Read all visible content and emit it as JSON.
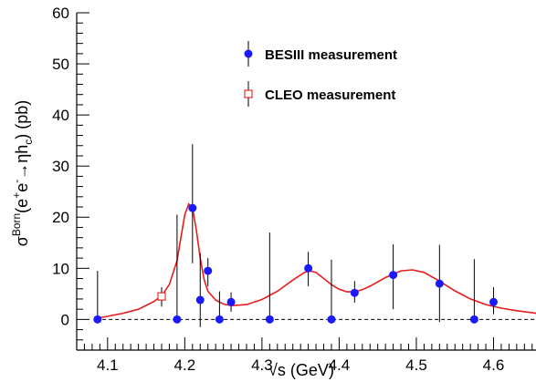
{
  "chart_data": {
    "type": "scatter",
    "xlabel": "√s (GeV)",
    "ylabel": {
      "prefix": "σ",
      "sup1": "Born",
      "mid1": "(e",
      "sup2": "+",
      "mid2": "e",
      "sup3": "-",
      "mid3": "→ηh",
      "sub1": "c",
      "suffix": ") (pb)"
    },
    "xlim": [
      4.06,
      4.655
    ],
    "ylim": [
      -6,
      60
    ],
    "x_ticks": [
      "4.1",
      "4.2",
      "4.3",
      "4.4",
      "4.5",
      "4.6"
    ],
    "y_ticks": [
      "0",
      "10",
      "20",
      "30",
      "40",
      "50",
      "60"
    ],
    "legend_position": "top-center",
    "legend": [
      {
        "label": "BESIII measurement",
        "marker": "filled-circle",
        "color": "#1a1aff"
      },
      {
        "label": "CLEO measurement",
        "marker": "open-square",
        "color": "#e8302c"
      }
    ],
    "colors": {
      "besiii": "#1a1aff",
      "cleo": "#e8302c",
      "fit": "#e81c1c"
    },
    "series": [
      {
        "name": "BESIII measurement",
        "points": [
          {
            "x": 4.087,
            "y": 0.0,
            "ylo": 0.0,
            "yhi": 9.5
          },
          {
            "x": 4.19,
            "y": 0.0,
            "ylo": 0.0,
            "yhi": 20.5
          },
          {
            "x": 4.21,
            "y": 21.8,
            "ylo": 11.0,
            "yhi": 34.3
          },
          {
            "x": 4.22,
            "y": 3.8,
            "ylo": -1.5,
            "yhi": 13.0
          },
          {
            "x": 4.23,
            "y": 9.5,
            "ylo": 6.5,
            "yhi": 12.0
          },
          {
            "x": 4.245,
            "y": 0.0,
            "ylo": 0.0,
            "yhi": 5.5
          },
          {
            "x": 4.26,
            "y": 3.4,
            "ylo": 1.5,
            "yhi": 5.3
          },
          {
            "x": 4.31,
            "y": 0.0,
            "ylo": 0.0,
            "yhi": 17.0
          },
          {
            "x": 4.36,
            "y": 10.0,
            "ylo": 6.5,
            "yhi": 13.2
          },
          {
            "x": 4.39,
            "y": 0.0,
            "ylo": 0.0,
            "yhi": 11.7
          },
          {
            "x": 4.42,
            "y": 5.2,
            "ylo": 3.3,
            "yhi": 7.5
          },
          {
            "x": 4.47,
            "y": 8.7,
            "ylo": 2.0,
            "yhi": 14.7
          },
          {
            "x": 4.53,
            "y": 7.0,
            "ylo": -0.5,
            "yhi": 14.6
          },
          {
            "x": 4.575,
            "y": 0.0,
            "ylo": 0.0,
            "yhi": 11.8
          },
          {
            "x": 4.6,
            "y": 3.4,
            "ylo": 1.0,
            "yhi": 6.3
          }
        ]
      },
      {
        "name": "CLEO measurement",
        "points": [
          {
            "x": 4.17,
            "y": 4.5,
            "ylo": 2.5,
            "yhi": 6.3
          }
        ]
      }
    ],
    "fit_curve": {
      "points": [
        [
          4.085,
          0.2
        ],
        [
          4.1,
          0.6
        ],
        [
          4.12,
          1.2
        ],
        [
          4.14,
          2.0
        ],
        [
          4.16,
          3.5
        ],
        [
          4.17,
          4.6
        ],
        [
          4.18,
          6.8
        ],
        [
          4.19,
          11.5
        ],
        [
          4.195,
          16.0
        ],
        [
          4.2,
          20.5
        ],
        [
          4.205,
          22.6
        ],
        [
          4.21,
          21.8
        ],
        [
          4.215,
          17.5
        ],
        [
          4.22,
          12.0
        ],
        [
          4.225,
          7.8
        ],
        [
          4.23,
          5.5
        ],
        [
          4.24,
          3.8
        ],
        [
          4.25,
          3.0
        ],
        [
          4.26,
          2.7
        ],
        [
          4.28,
          2.9
        ],
        [
          4.3,
          3.9
        ],
        [
          4.32,
          5.5
        ],
        [
          4.34,
          7.7
        ],
        [
          4.355,
          9.2
        ],
        [
          4.362,
          9.5
        ],
        [
          4.37,
          9.2
        ],
        [
          4.38,
          8.0
        ],
        [
          4.39,
          6.8
        ],
        [
          4.4,
          5.9
        ],
        [
          4.41,
          5.4
        ],
        [
          4.42,
          5.4
        ],
        [
          4.43,
          5.8
        ],
        [
          4.44,
          6.5
        ],
        [
          4.46,
          8.2
        ],
        [
          4.48,
          9.5
        ],
        [
          4.495,
          9.7
        ],
        [
          4.51,
          9.2
        ],
        [
          4.53,
          7.5
        ],
        [
          4.55,
          5.6
        ],
        [
          4.57,
          4.0
        ],
        [
          4.59,
          2.9
        ],
        [
          4.61,
          2.2
        ],
        [
          4.63,
          1.7
        ],
        [
          4.655,
          1.2
        ]
      ]
    },
    "reference_line_y": 0
  }
}
